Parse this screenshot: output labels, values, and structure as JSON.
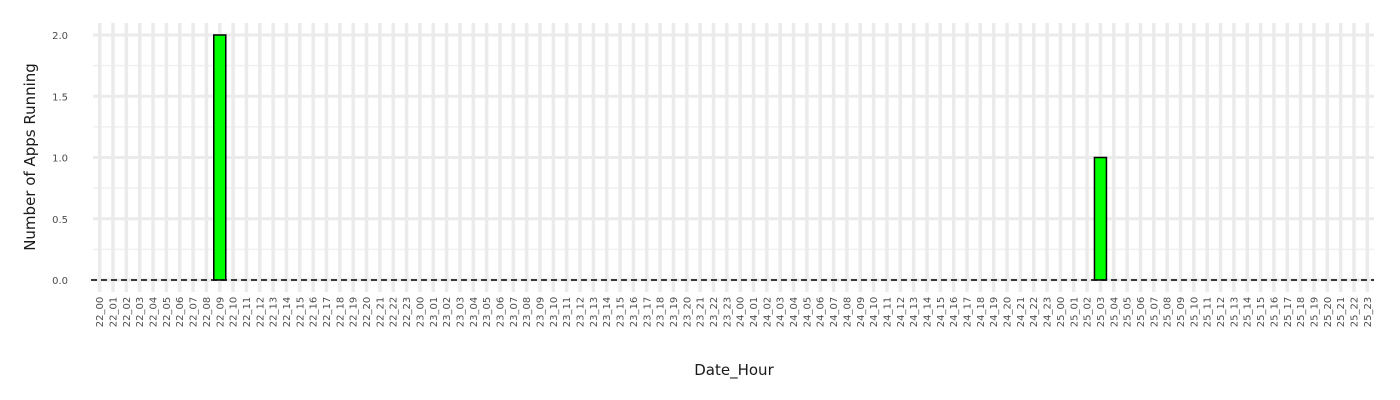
{
  "chart_data": {
    "type": "bar",
    "xlabel": "Date_Hour",
    "ylabel": "Number of Apps Running",
    "ylim": [
      0,
      2.1
    ],
    "yticks": [
      0.0,
      0.5,
      1.0,
      1.5,
      2.0
    ],
    "ytick_labels": [
      "0.0",
      "0.5",
      "1.0",
      "1.5",
      "2.0"
    ],
    "grid": true,
    "legend": "none",
    "bar_fill": "#00ff00",
    "bar_edge": "#000000",
    "categories": [
      "22_00",
      "22_01",
      "22_02",
      "22_03",
      "22_04",
      "22_05",
      "22_06",
      "22_07",
      "22_08",
      "22_09",
      "22_10",
      "22_11",
      "22_12",
      "22_13",
      "22_14",
      "22_15",
      "22_16",
      "22_17",
      "22_18",
      "22_19",
      "22_20",
      "22_21",
      "22_22",
      "22_23",
      "23_00",
      "23_01",
      "23_02",
      "23_03",
      "23_04",
      "23_05",
      "23_06",
      "23_07",
      "23_08",
      "23_09",
      "23_10",
      "23_11",
      "23_12",
      "23_13",
      "23_14",
      "23_15",
      "23_16",
      "23_17",
      "23_18",
      "23_19",
      "23_20",
      "23_21",
      "23_22",
      "23_23",
      "24_00",
      "24_01",
      "24_02",
      "24_03",
      "24_04",
      "24_05",
      "24_06",
      "24_07",
      "24_08",
      "24_09",
      "24_10",
      "24_11",
      "24_12",
      "24_13",
      "24_14",
      "24_15",
      "24_16",
      "24_17",
      "24_18",
      "24_19",
      "24_20",
      "24_21",
      "24_22",
      "24_23",
      "25_00",
      "25_01",
      "25_02",
      "25_03",
      "25_04",
      "25_05",
      "25_06",
      "25_07",
      "25_08",
      "25_09",
      "25_10",
      "25_11",
      "25_12",
      "25_13",
      "25_14",
      "25_15",
      "25_16",
      "25_17",
      "25_18",
      "25_19",
      "25_20",
      "25_21",
      "25_22",
      "25_23"
    ],
    "values": [
      0,
      0,
      0,
      0,
      0,
      0,
      0,
      0,
      0,
      2,
      0,
      0,
      0,
      0,
      0,
      0,
      0,
      0,
      0,
      0,
      0,
      0,
      0,
      0,
      0,
      0,
      0,
      0,
      0,
      0,
      0,
      0,
      0,
      0,
      0,
      0,
      0,
      0,
      0,
      0,
      0,
      0,
      0,
      0,
      0,
      0,
      0,
      0,
      0,
      0,
      0,
      0,
      0,
      0,
      0,
      0,
      0,
      0,
      0,
      0,
      0,
      0,
      0,
      0,
      0,
      0,
      0,
      0,
      0,
      0,
      0,
      0,
      0,
      0,
      0,
      1,
      0,
      0,
      0,
      0,
      0,
      0,
      0,
      0,
      0,
      0,
      0,
      0,
      0,
      0,
      0,
      0,
      0,
      0,
      0,
      0
    ]
  }
}
